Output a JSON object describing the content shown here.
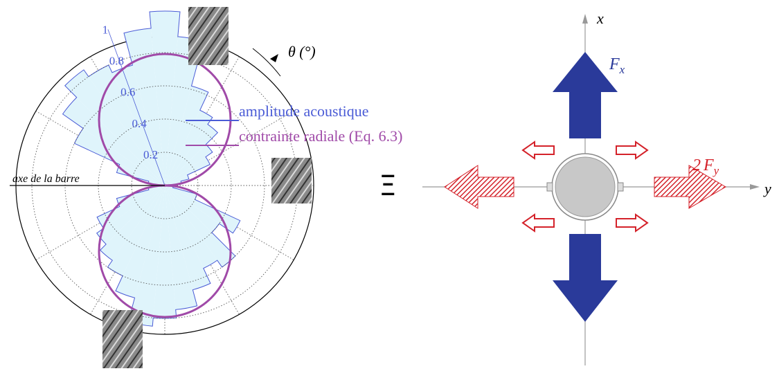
{
  "chart_data": {
    "type": "polar-histogram",
    "theta_label": "θ (°)",
    "rlim": [
      0,
      1
    ],
    "rticks": [
      0.2,
      0.4,
      0.6,
      0.8,
      1
    ],
    "bins": [
      -5,
      5,
      15,
      25,
      35,
      45,
      55,
      65,
      75,
      85,
      95,
      105,
      115,
      125,
      135,
      145,
      155,
      165,
      175,
      185,
      195,
      205,
      215,
      225,
      235,
      245,
      255,
      265,
      275,
      285,
      295,
      305,
      315,
      325,
      335,
      345,
      355
    ],
    "values": [
      0.03,
      0.1,
      0.15,
      0.3,
      0.35,
      0.45,
      0.5,
      0.62,
      0.9,
      1.05,
      0.95,
      0.75,
      0.8,
      0.85,
      0.75,
      0.6,
      0.3,
      0.1,
      0.03,
      0.1,
      0.3,
      0.45,
      0.5,
      0.55,
      0.6,
      0.7,
      0.85,
      0.8,
      0.75,
      0.65,
      0.55,
      0.6,
      0.4,
      0.5,
      0.2,
      0.05
    ],
    "color": "#4a5bd6",
    "fill": "#dff4fb",
    "series": [
      {
        "name": "amplitude acoustique",
        "color": "#4a5bd6"
      },
      {
        "name": "contrainte radiale (Eq. 6.3)",
        "color": "#a04aa8"
      }
    ],
    "annotation": "axe de la barre"
  },
  "diagram": {
    "equivalence": "Ξ",
    "x_axis": "x",
    "y_axis": "y",
    "force_x": {
      "main": "F",
      "sub": "x"
    },
    "force_y": {
      "factor": "2",
      "main": "F",
      "sub": "y"
    }
  }
}
